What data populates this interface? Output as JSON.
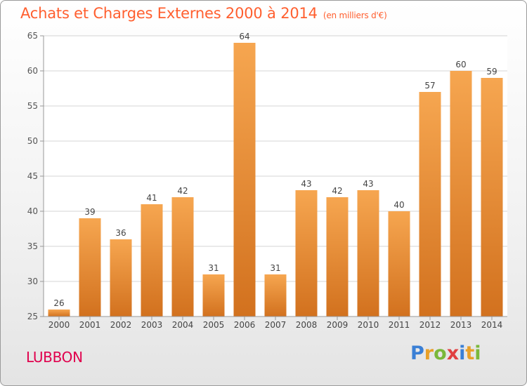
{
  "chart_data": {
    "type": "bar",
    "title": "Achats et Charges Externes 2000 à 2014",
    "subtitle": "(en milliers d'€)",
    "categories": [
      "2000",
      "2001",
      "2002",
      "2003",
      "2004",
      "2005",
      "2006",
      "2007",
      "2008",
      "2009",
      "2010",
      "2011",
      "2012",
      "2013",
      "2014"
    ],
    "values": [
      26,
      39,
      36,
      41,
      42,
      31,
      64,
      31,
      43,
      42,
      43,
      40,
      57,
      60,
      59
    ],
    "ylim": [
      25,
      65
    ],
    "yticks": [
      25,
      30,
      35,
      40,
      45,
      50,
      55,
      60,
      65
    ],
    "grid": true,
    "bar_color_light": "#f6a650",
    "bar_color_dark": "#d2711e"
  },
  "commune": "LUBBON",
  "logo": {
    "letters": [
      "P",
      "r",
      "o",
      "x",
      "i",
      "t",
      "i"
    ],
    "colors": [
      "#3a7fd5",
      "#e8a028",
      "#7ab83a",
      "#e04040",
      "#3a7fd5",
      "#e8a028",
      "#7ab83a"
    ]
  }
}
